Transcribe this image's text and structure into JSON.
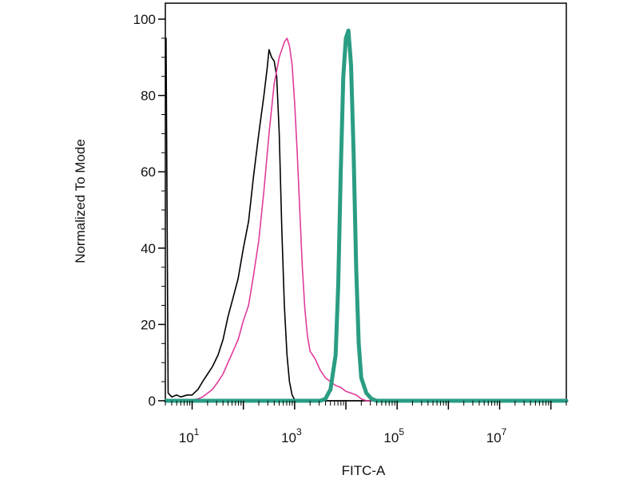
{
  "chart_data": {
    "type": "line",
    "xlabel": "FITC-A",
    "ylabel": "Normalized To Mode",
    "x_scale": "log",
    "xlim": [
      3,
      200000000
    ],
    "ylim": [
      0,
      100
    ],
    "y_ticks": [
      0,
      20,
      40,
      60,
      80,
      100
    ],
    "x_ticks": [
      {
        "value": 10,
        "base": "10",
        "exp": "1"
      },
      {
        "value": 1000,
        "base": "10",
        "exp": "3"
      },
      {
        "value": 100000,
        "base": "10",
        "exp": "5"
      },
      {
        "value": 10000000,
        "base": "10",
        "exp": "7"
      }
    ],
    "grid": false,
    "legend": "none",
    "series": [
      {
        "color": "#000000",
        "line_width": "thin",
        "points": [
          [
            3.1,
            95
          ],
          [
            3.4,
            2
          ],
          [
            4,
            1
          ],
          [
            5,
            1.5
          ],
          [
            6,
            1
          ],
          [
            8,
            1.5
          ],
          [
            10,
            1.5
          ],
          [
            13,
            3
          ],
          [
            16,
            5
          ],
          [
            20,
            7
          ],
          [
            25,
            9
          ],
          [
            32,
            12
          ],
          [
            40,
            16
          ],
          [
            50,
            22
          ],
          [
            63,
            27
          ],
          [
            79,
            32
          ],
          [
            100,
            40
          ],
          [
            126,
            47
          ],
          [
            158,
            59
          ],
          [
            200,
            70
          ],
          [
            251,
            80
          ],
          [
            290,
            87
          ],
          [
            316,
            92
          ],
          [
            355,
            90
          ],
          [
            400,
            89
          ],
          [
            447,
            85
          ],
          [
            501,
            70
          ],
          [
            562,
            45
          ],
          [
            631,
            25
          ],
          [
            708,
            12
          ],
          [
            794,
            5
          ],
          [
            891,
            1.5
          ],
          [
            1000,
            0.3
          ],
          [
            1300,
            0
          ],
          [
            200000000,
            0
          ]
        ]
      },
      {
        "color": "#e03a9a",
        "line_width": "thin",
        "points": [
          [
            3.1,
            0
          ],
          [
            8,
            0
          ],
          [
            13,
            0.5
          ],
          [
            16,
            1
          ],
          [
            20,
            2
          ],
          [
            25,
            3
          ],
          [
            32,
            5
          ],
          [
            40,
            7
          ],
          [
            50,
            10
          ],
          [
            63,
            13
          ],
          [
            79,
            16
          ],
          [
            100,
            21
          ],
          [
            126,
            25
          ],
          [
            158,
            33
          ],
          [
            200,
            42
          ],
          [
            251,
            55
          ],
          [
            316,
            70
          ],
          [
            398,
            83
          ],
          [
            501,
            90
          ],
          [
            631,
            94
          ],
          [
            708,
            95
          ],
          [
            794,
            93
          ],
          [
            891,
            88
          ],
          [
            1000,
            78
          ],
          [
            1122,
            65
          ],
          [
            1259,
            50
          ],
          [
            1413,
            35
          ],
          [
            1585,
            24
          ],
          [
            1778,
            17
          ],
          [
            2000,
            13
          ],
          [
            2512,
            11
          ],
          [
            3162,
            8
          ],
          [
            3981,
            6
          ],
          [
            5012,
            5
          ],
          [
            6310,
            4
          ],
          [
            7943,
            3.5
          ],
          [
            10000,
            2.5
          ],
          [
            12589,
            2
          ],
          [
            15849,
            1.5
          ],
          [
            19953,
            0.5
          ],
          [
            25119,
            0
          ],
          [
            200000000,
            0
          ]
        ]
      },
      {
        "color": "#2a9d83",
        "line_width": "thick",
        "points": [
          [
            3.1,
            0
          ],
          [
            3162,
            0
          ],
          [
            3981,
            0.5
          ],
          [
            5012,
            3
          ],
          [
            6310,
            12
          ],
          [
            7079,
            30
          ],
          [
            7943,
            60
          ],
          [
            8912,
            85
          ],
          [
            10000,
            95
          ],
          [
            11220,
            97
          ],
          [
            12589,
            88
          ],
          [
            14125,
            65
          ],
          [
            15849,
            35
          ],
          [
            17783,
            15
          ],
          [
            19953,
            6
          ],
          [
            25119,
            2
          ],
          [
            31623,
            0.5
          ],
          [
            39811,
            0
          ],
          [
            200000000,
            0
          ]
        ]
      }
    ]
  }
}
